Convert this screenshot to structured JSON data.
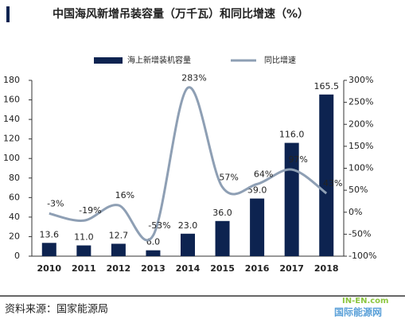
{
  "chart_data": {
    "type": "bar_line",
    "title": "中国海风新增吊装容量（万千瓦）和同比增速（%）",
    "categories": [
      "2010",
      "2011",
      "2012",
      "2013",
      "2014",
      "2015",
      "2016",
      "2017",
      "2018"
    ],
    "series": [
      {
        "name": "海上新增装机容量",
        "color": "#0d2350",
        "type": "bar",
        "values": [
          13.6,
          11.0,
          12.7,
          6.0,
          23.0,
          36.0,
          59.0,
          116.0,
          165.5
        ],
        "value_labels": [
          "13.6",
          "11.0",
          "12.7",
          "6.0",
          "23.0",
          "36.0",
          "59.0",
          "116.0",
          "165.5"
        ]
      },
      {
        "name": "同比增速",
        "color": "#8e9fb4",
        "type": "line",
        "axis": "y2",
        "values": [
          -3,
          -19,
          16,
          -53,
          283,
          57,
          64,
          97,
          43
        ],
        "value_labels": [
          "-3%",
          "-19%",
          "16%",
          "-53%",
          "283%",
          "57%",
          "64%",
          "97%",
          "43%"
        ]
      }
    ],
    "ylim": [
      0,
      180
    ],
    "yticks": [
      0,
      20,
      40,
      60,
      80,
      100,
      120,
      140,
      160,
      180
    ],
    "y2lim": [
      -100,
      300
    ],
    "y2ticks": [
      {
        "value": -100,
        "label": "-100%"
      },
      {
        "value": -50,
        "label": "-50%"
      },
      {
        "value": 0,
        "label": "0%"
      },
      {
        "value": 50,
        "label": "50%"
      },
      {
        "value": 100,
        "label": "100%"
      },
      {
        "value": 150,
        "label": "150%"
      },
      {
        "value": 200,
        "label": "200%"
      },
      {
        "value": 250,
        "label": "250%"
      },
      {
        "value": 300,
        "label": "300%"
      }
    ],
    "legend": "top",
    "source": "资料来源：国家能源局",
    "watermark": [
      "IN-EN.com",
      "国际能源网"
    ]
  }
}
